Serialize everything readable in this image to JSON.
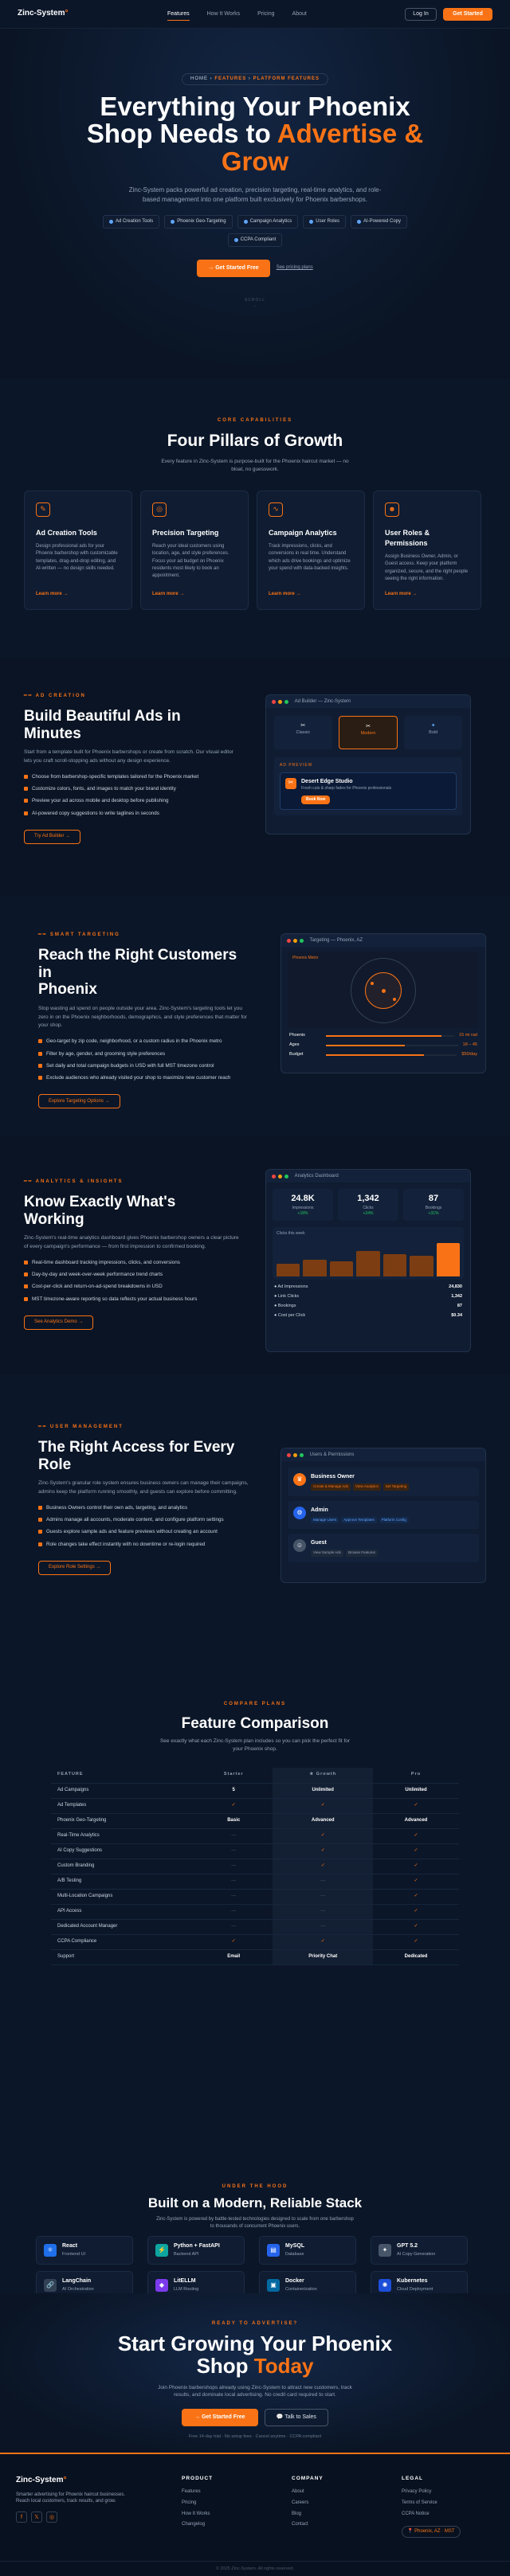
{
  "nav": {
    "logo": "Zinc-System",
    "links": [
      "Features",
      "How It Works",
      "Pricing",
      "About"
    ],
    "login": "Log In",
    "start": "Get Started"
  },
  "hero": {
    "crumb_a": "HOME",
    "crumb_b": "FEATURES",
    "crumb_c": "PLATFORM FEATURES",
    "title_1": "Everything Your Phoenix",
    "title_2": "Shop Needs to ",
    "title_3": "Advertise &",
    "title_4": "Grow",
    "sub": "Zinc-System packs powerful ad creation, precision targeting, real-time analytics, and role-based management into one platform built exclusively for Phoenix barbershops.",
    "chips": [
      "Ad Creation Tools",
      "Phoenix Geo-Targeting",
      "Campaign Analytics",
      "User Roles",
      "AI-Powered Copy",
      "CCPA Compliant"
    ],
    "cta": "Get Started Free",
    "link": "See pricing plans",
    "scroll": "SCROLL"
  },
  "pillars": {
    "label": "CORE CAPABILITIES",
    "title": "Four Pillars of Growth",
    "sub": "Every feature in Zinc-System is purpose-built for the Phoenix haircut market — no bloat, no guesswork.",
    "items": [
      {
        "icon": "edit-icon",
        "title": "Ad Creation Tools",
        "text": "Design professional ads for your Phoenix barbershop with customizable templates, drag-and-drop editing, and AI-written — no design skills needed.",
        "link": "Learn more →"
      },
      {
        "icon": "target-icon",
        "title": "Precision Targeting",
        "text": "Reach your ideal customers using location, age, and style preferences. Focus your ad budget on Phoenix residents most likely to book an appointment.",
        "link": "Learn more →"
      },
      {
        "icon": "chart-icon",
        "title": "Campaign Analytics",
        "text": "Track impressions, clicks, and conversions in real time. Understand which ads drive bookings and optimize your spend with data-backed insights.",
        "link": "Learn more →"
      },
      {
        "icon": "users-icon",
        "title": "User Roles & Permissions",
        "text": "Assign Business Owner, Admin, or Guest access. Keep your platform organized, secure, and the right people seeing the right information.",
        "link": "Learn more →"
      }
    ]
  },
  "f1": {
    "label": "AD CREATION",
    "title": "Build Beautiful Ads in Minutes",
    "desc": "Start from a template built for Phoenix barbershops or create from scratch. Our visual editor lets you craft scroll-stopping ads without any design experience.",
    "bullets": [
      "Choose from barbershop-specific templates tailored for the Phoenix market",
      "Customize colors, fonts, and images to match your brand identity",
      "Preview your ad across mobile and desktop before publishing",
      "AI-powered copy suggestions to write taglines in seconds"
    ],
    "btn": "Try Ad Builder →",
    "mock": {
      "title": "Ad Builder — Zinc-System",
      "tiles": [
        "Classic",
        "Modern",
        "Bold"
      ],
      "preview_label": "AD PREVIEW",
      "ad_title": "Desert Edge Studio",
      "ad_text": "Fresh cuts & sharp fades for Phoenix professionals",
      "ad_btn": "Book Now"
    }
  },
  "f2": {
    "label": "SMART TARGETING",
    "title_1": "Reach the Right Customers in",
    "title_2": "Phoenix",
    "desc": "Stop wasting ad spend on people outside your area. Zinc-System's targeting tools let you zero in on the Phoenix neighborhoods, demographics, and style preferences that matter for your shop.",
    "bullets": [
      "Geo-target by zip code, neighborhood, or a custom radius in the Phoenix metro",
      "Filter by age, gender, and grooming style preferences",
      "Set daily and total campaign budgets in USD with full MST timezone control",
      "Exclude audiences who already visited your shop to maximize new customer reach"
    ],
    "btn": "Explore Targeting Options →",
    "mock": {
      "title": "Targeting — Phoenix, AZ",
      "map_label": "Phoenix Metro",
      "rows": [
        {
          "k": "Phoenix",
          "v": "15 mi rad"
        },
        {
          "k": "Ages",
          "v": "18 – 45"
        },
        {
          "k": "Budget",
          "v": "$50/day"
        }
      ]
    }
  },
  "f3": {
    "label": "ANALYTICS & INSIGHTS",
    "title": "Know Exactly What's Working",
    "desc": "Zinc-System's real-time analytics dashboard gives Phoenix barbershop owners a clear picture of every campaign's performance — from first impression to confirmed booking.",
    "bullets": [
      "Real-time dashboard tracking impressions, clicks, and conversions",
      "Day-by-day and week-over-week performance trend charts",
      "Cost-per-click and return-on-ad-spend breakdowns in USD",
      "MST timezone-aware reporting so data reflects your actual business hours"
    ],
    "btn": "See Analytics Demo →",
    "mock": {
      "title": "Analytics Dashboard",
      "stats": [
        {
          "v": "24.8K",
          "l": "Impressions",
          "s": "+18%"
        },
        {
          "v": "1,342",
          "l": "Clicks",
          "s": "+24%"
        },
        {
          "v": "87",
          "l": "Bookings",
          "s": "+31%"
        }
      ],
      "chart_label": "Clicks this week",
      "bars": [
        0.35,
        0.45,
        0.4,
        0.7,
        0.6,
        0.55,
        0.9
      ],
      "rows": [
        {
          "k": "Ad Impressions",
          "v": "24,830"
        },
        {
          "k": "Link Clicks",
          "v": "1,342"
        },
        {
          "k": "Bookings",
          "v": "87"
        },
        {
          "k": "Cost per Click",
          "v": "$0.34"
        }
      ]
    }
  },
  "f4": {
    "label": "USER MANAGEMENT",
    "title_1": "The Right Access for Every",
    "title_2": "Role",
    "desc": "Zinc-System's granular role system ensures business owners can manage their campaigns, admins keep the platform running smoothly, and guests can explore before committing.",
    "bullets": [
      "Business Owners control their own ads, targeting, and analytics",
      "Admins manage all accounts, moderate content, and configure platform settings",
      "Guests explore sample ads and feature previews without creating an account",
      "Role changes take effect instantly with no downtime or re-login required"
    ],
    "btn": "Explore Role Settings →",
    "mock": {
      "title": "Users & Permissions",
      "users": [
        {
          "name": "Business Owner",
          "tags": [
            "Create & Manage Ads",
            "View Analytics",
            "Set Targeting"
          ]
        },
        {
          "name": "Admin",
          "tags": [
            "Manage Users",
            "Approve Templates",
            "Platform Config"
          ]
        },
        {
          "name": "Guest",
          "tags": [
            "View Sample Ads",
            "Browse Features"
          ]
        }
      ]
    }
  },
  "compare": {
    "label": "COMPARE PLANS",
    "title": "Feature Comparison",
    "sub": "See exactly what each Zinc-System plan includes so you can pick the perfect fit for your Phoenix shop.",
    "headers": [
      "FEATURE",
      "Starter",
      "★ Growth",
      "Pro"
    ],
    "rows": [
      [
        "Ad Campaigns",
        "5",
        "Unlimited",
        "Unlimited"
      ],
      [
        "Ad Templates",
        "✓",
        "✓",
        "✓"
      ],
      [
        "Phoenix Geo-Targeting",
        "Basic",
        "Advanced",
        "Advanced"
      ],
      [
        "Real-Time Analytics",
        "—",
        "✓",
        "✓"
      ],
      [
        "AI Copy Suggestions",
        "—",
        "✓",
        "✓"
      ],
      [
        "Custom Branding",
        "—",
        "✓",
        "✓"
      ],
      [
        "A/B Testing",
        "—",
        "—",
        "✓"
      ],
      [
        "Multi-Location Campaigns",
        "—",
        "—",
        "✓"
      ],
      [
        "API Access",
        "—",
        "—",
        "✓"
      ],
      [
        "Dedicated Account Manager",
        "—",
        "—",
        "✓"
      ],
      [
        "CCPA Compliance",
        "✓",
        "✓",
        "✓"
      ],
      [
        "Support",
        "Email",
        "Priority Chat",
        "Dedicated"
      ]
    ]
  },
  "stack": {
    "label": "UNDER THE HOOD",
    "title": "Built on a Modern, Reliable Stack",
    "sub": "Zinc-System is powered by battle-tested technologies designed to scale from one barbershop to thousands of concurrent Phoenix users.",
    "items": [
      {
        "name": "React",
        "desc": "Frontend UI",
        "icon": "⚛",
        "color": "#1f6feb"
      },
      {
        "name": "Python + FastAPI",
        "desc": "Backend API",
        "icon": "⚡",
        "color": "#0ea5a0"
      },
      {
        "name": "MySQL",
        "desc": "Database",
        "icon": "▤",
        "color": "#2563eb"
      },
      {
        "name": "GPT 5.2",
        "desc": "AI Copy Generation",
        "icon": "✦",
        "color": "#475569"
      },
      {
        "name": "LangChain",
        "desc": "AI Orchestration",
        "icon": "🔗",
        "color": "#334155"
      },
      {
        "name": "LitELLM",
        "desc": "LLM Routing",
        "icon": "◆",
        "color": "#7c3aed"
      },
      {
        "name": "Docker",
        "desc": "Containerization",
        "icon": "▣",
        "color": "#0369a1"
      },
      {
        "name": "Kubernetes",
        "desc": "Cloud Deployment",
        "icon": "✺",
        "color": "#1d4ed8"
      }
    ]
  },
  "cta": {
    "label": "READY TO ADVERTISE?",
    "title_1": "Start Growing Your Phoenix",
    "title_2": "Shop ",
    "title_3": "Today",
    "sub": "Join Phoenix barbershops already using Zinc-System to attract new customers, track results, and dominate local advertising. No credit card required to start.",
    "btn1": "Get Started Free",
    "btn2": "Talk to Sales",
    "fine": "Free 14-day trial · No setup fees · Cancel anytime · CCPA compliant"
  },
  "footer": {
    "logo": "Zinc-System",
    "tagline": "Smarter advertising for Phoenix haircut businesses. Reach local customers, track results, and grow.",
    "product": {
      "h": "PRODUCT",
      "links": [
        "Features",
        "Pricing",
        "How It Works",
        "Changelog"
      ]
    },
    "company": {
      "h": "COMPANY",
      "links": [
        "About",
        "Careers",
        "Blog",
        "Contact"
      ]
    },
    "legal": {
      "h": "LEGAL",
      "links": [
        "Privacy Policy",
        "Terms of Service",
        "CCPA Notice"
      ]
    },
    "loc": "Phoenix, AZ · MST",
    "copy": "© 2025 Zinc-System. All rights reserved."
  },
  "colors": {
    "accent": "#f97316",
    "bg": "#0a1424"
  }
}
